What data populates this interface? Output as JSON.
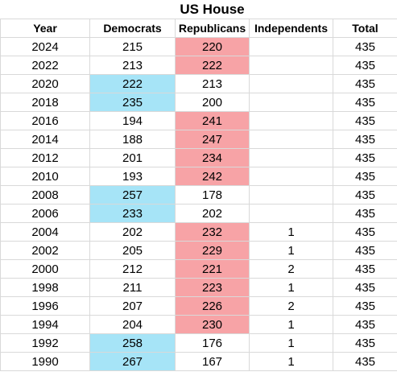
{
  "title": "US House",
  "columns": [
    "Year",
    "Democrats",
    "Republicans",
    "Independents",
    "Total"
  ],
  "colors": {
    "democrat_majority": "#a6e4f7",
    "republican_majority": "#f7a3a6",
    "gridline": "#d9d9d9"
  },
  "rows": [
    {
      "year": "2024",
      "democrats": "215",
      "republicans": "220",
      "independents": "",
      "total": "435",
      "majority": "republicans"
    },
    {
      "year": "2022",
      "democrats": "213",
      "republicans": "222",
      "independents": "",
      "total": "435",
      "majority": "republicans"
    },
    {
      "year": "2020",
      "democrats": "222",
      "republicans": "213",
      "independents": "",
      "total": "435",
      "majority": "democrats"
    },
    {
      "year": "2018",
      "democrats": "235",
      "republicans": "200",
      "independents": "",
      "total": "435",
      "majority": "democrats"
    },
    {
      "year": "2016",
      "democrats": "194",
      "republicans": "241",
      "independents": "",
      "total": "435",
      "majority": "republicans"
    },
    {
      "year": "2014",
      "democrats": "188",
      "republicans": "247",
      "independents": "",
      "total": "435",
      "majority": "republicans"
    },
    {
      "year": "2012",
      "democrats": "201",
      "republicans": "234",
      "independents": "",
      "total": "435",
      "majority": "republicans"
    },
    {
      "year": "2010",
      "democrats": "193",
      "republicans": "242",
      "independents": "",
      "total": "435",
      "majority": "republicans"
    },
    {
      "year": "2008",
      "democrats": "257",
      "republicans": "178",
      "independents": "",
      "total": "435",
      "majority": "democrats"
    },
    {
      "year": "2006",
      "democrats": "233",
      "republicans": "202",
      "independents": "",
      "total": "435",
      "majority": "democrats"
    },
    {
      "year": "2004",
      "democrats": "202",
      "republicans": "232",
      "independents": "1",
      "total": "435",
      "majority": "republicans"
    },
    {
      "year": "2002",
      "democrats": "205",
      "republicans": "229",
      "independents": "1",
      "total": "435",
      "majority": "republicans"
    },
    {
      "year": "2000",
      "democrats": "212",
      "republicans": "221",
      "independents": "2",
      "total": "435",
      "majority": "republicans"
    },
    {
      "year": "1998",
      "democrats": "211",
      "republicans": "223",
      "independents": "1",
      "total": "435",
      "majority": "republicans"
    },
    {
      "year": "1996",
      "democrats": "207",
      "republicans": "226",
      "independents": "2",
      "total": "435",
      "majority": "republicans"
    },
    {
      "year": "1994",
      "democrats": "204",
      "republicans": "230",
      "independents": "1",
      "total": "435",
      "majority": "republicans"
    },
    {
      "year": "1992",
      "democrats": "258",
      "republicans": "176",
      "independents": "1",
      "total": "435",
      "majority": "democrats"
    },
    {
      "year": "1990",
      "democrats": "267",
      "republicans": "167",
      "independents": "1",
      "total": "435",
      "majority": "democrats"
    }
  ]
}
